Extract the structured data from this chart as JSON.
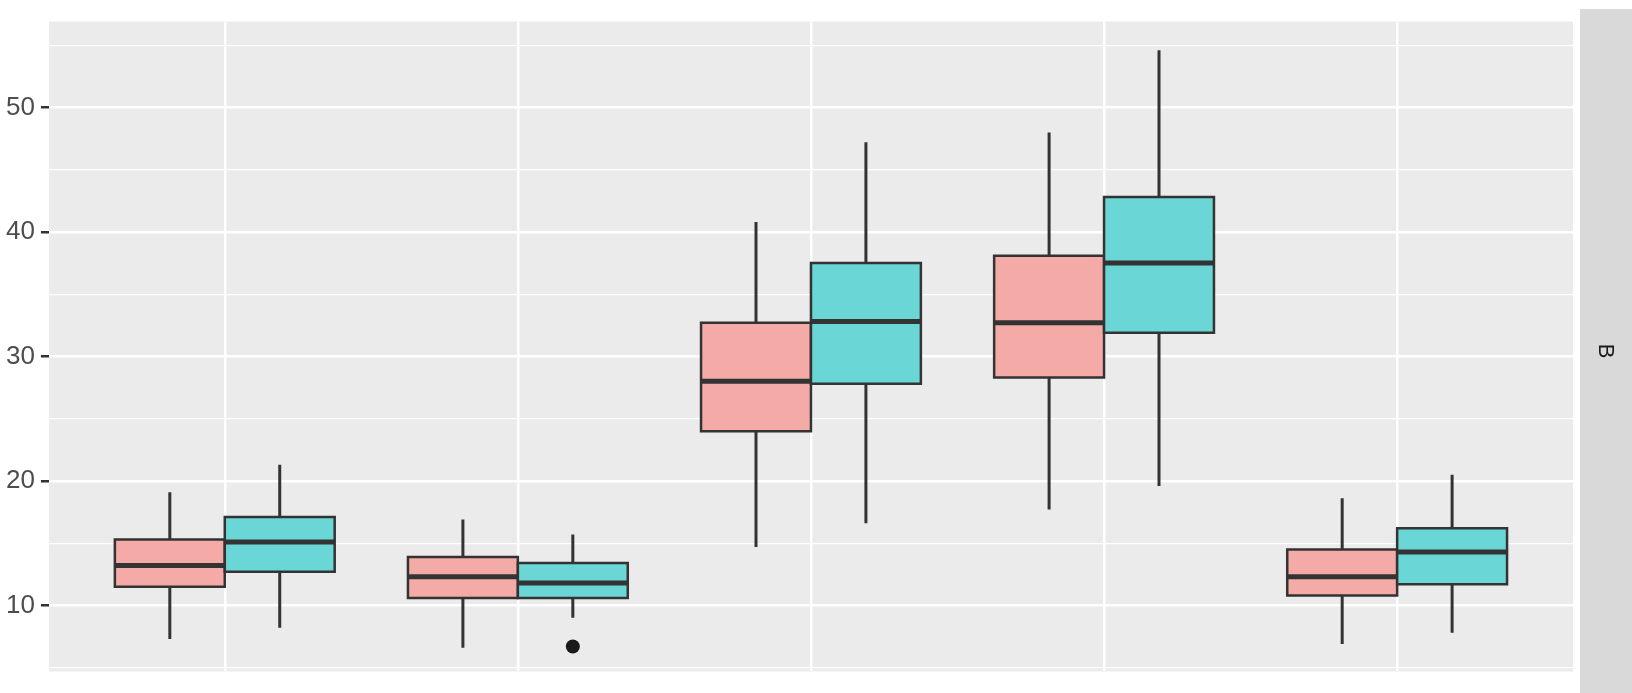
{
  "chart_data": {
    "type": "box",
    "categories": [
      null,
      null,
      null,
      null,
      null
    ],
    "series": [
      {
        "color": "#f4aaa6",
        "boxes": [
          {
            "low": 7.3,
            "q1": 11.5,
            "median": 13.2,
            "q3": 15.3,
            "high": 19.1
          },
          {
            "low": 6.6,
            "q1": 10.6,
            "median": 12.3,
            "q3": 13.9,
            "high": 16.9
          },
          {
            "low": 14.7,
            "q1": 24.0,
            "median": 28.0,
            "q3": 32.7,
            "high": 40.8
          },
          {
            "low": 17.7,
            "q1": 28.3,
            "median": 32.7,
            "q3": 38.1,
            "high": 48.0
          },
          {
            "low": 6.9,
            "q1": 10.8,
            "median": 12.3,
            "q3": 14.5,
            "high": 18.6
          }
        ]
      },
      {
        "color": "#6ad6d6",
        "boxes": [
          {
            "low": 8.2,
            "q1": 12.7,
            "median": 15.1,
            "q3": 17.1,
            "high": 21.3
          },
          {
            "low": 9.0,
            "q1": 10.6,
            "median": 11.8,
            "q3": 13.4,
            "high": 15.7,
            "outliers": [
              6.7
            ]
          },
          {
            "low": 16.6,
            "q1": 27.8,
            "median": 32.8,
            "q3": 37.5,
            "high": 47.2
          },
          {
            "low": 19.6,
            "q1": 31.9,
            "median": 37.5,
            "q3": 42.8,
            "high": 54.6
          },
          {
            "low": 7.8,
            "q1": 11.7,
            "median": 14.3,
            "q3": 16.2,
            "high": 20.5
          }
        ]
      }
    ],
    "ylim": [
      4.7,
      56.9
    ],
    "yticks": [
      {
        "value": 5,
        "label": null
      },
      10,
      {
        "value": 15,
        "label": null
      },
      20,
      {
        "value": 25,
        "label": null
      },
      30,
      {
        "value": 35,
        "label": null
      },
      40,
      {
        "value": 45,
        "label": null
      },
      50,
      {
        "value": 55,
        "label": null
      }
    ],
    "grid": true,
    "tick_labels": "y",
    "annotations": [
      "B"
    ]
  }
}
